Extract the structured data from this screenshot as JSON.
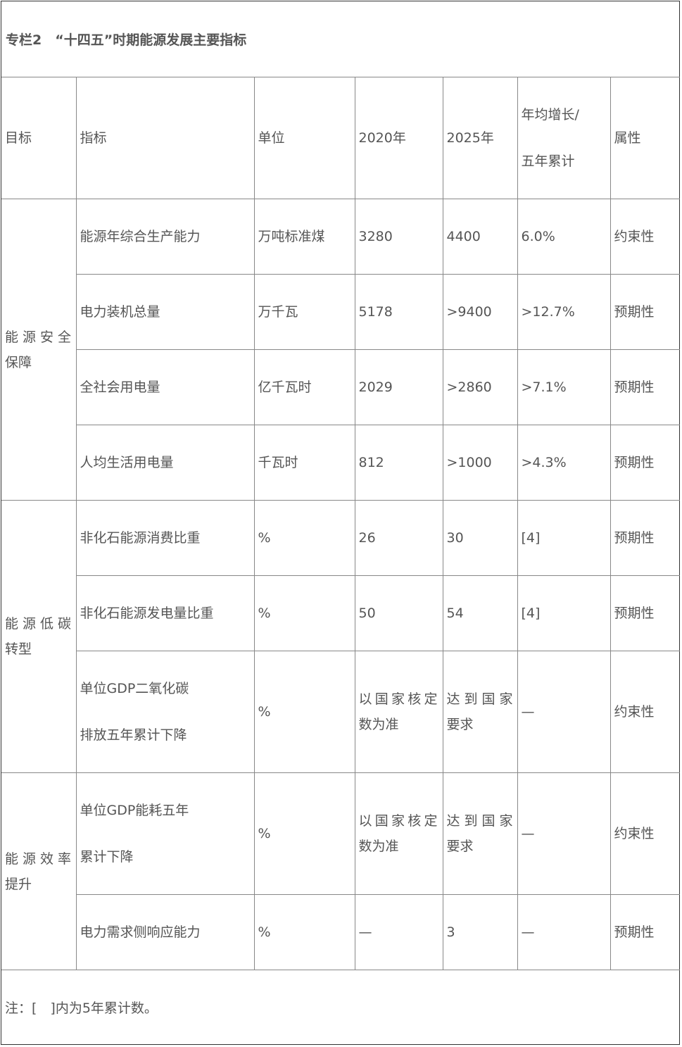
{
  "title": "专栏2　“十四五”时期能源发展主要指标",
  "headers": {
    "goal": "目标",
    "indicator": "指标",
    "unit": "单位",
    "y2020": "2020年",
    "y2025": "2025年",
    "growth_line1": "年均增长/",
    "growth_line2": "五年累计",
    "attr": "属性"
  },
  "groups": [
    {
      "name": "能源安全保障"
    },
    {
      "name": "能源低碳转型"
    },
    {
      "name": "能源效率提升"
    }
  ],
  "rows": [
    {
      "indicator": "能源年综合生产能力",
      "unit": "万吨标准煤",
      "y2020": "3280",
      "y2025": "4400",
      "growth": "6.0%",
      "attr": "约束性"
    },
    {
      "indicator": "电力装机总量",
      "unit": "万千瓦",
      "y2020": "5178",
      "y2025": ">9400",
      "growth": ">12.7%",
      "attr": "预期性"
    },
    {
      "indicator": "全社会用电量",
      "unit": "亿千瓦时",
      "y2020": "2029",
      "y2025": ">2860",
      "growth": ">7.1%",
      "attr": "预期性"
    },
    {
      "indicator": "人均生活用电量",
      "unit": "千瓦时",
      "y2020": "812",
      "y2025": ">1000",
      "growth": ">4.3%",
      "attr": "预期性"
    },
    {
      "indicator": "非化石能源消费比重",
      "unit": "%",
      "y2020": "26",
      "y2025": "30",
      "growth": "[4]",
      "attr": "预期性"
    },
    {
      "indicator": "非化石能源发电量比重",
      "unit": "%",
      "y2020": "50",
      "y2025": "54",
      "growth": "[4]",
      "attr": "预期性"
    },
    {
      "indicator_line1": "单位GDP二氧化碳",
      "indicator_line2": "排放五年累计下降",
      "unit": "%",
      "y2020": "以国家核定数为准",
      "y2025": "达到国家要求",
      "growth": "—",
      "attr": "约束性"
    },
    {
      "indicator_line1": "单位GDP能耗五年",
      "indicator_line2": "累计下降",
      "unit": "%",
      "y2020": "以国家核定数为准",
      "y2025": "达到国家要求",
      "growth": "—",
      "attr": "约束性"
    },
    {
      "indicator": "电力需求侧响应能力",
      "unit": "%",
      "y2020": "—",
      "y2025": "3",
      "growth": "—",
      "attr": "预期性"
    }
  ],
  "note": "注：[　]内为5年累计数。"
}
